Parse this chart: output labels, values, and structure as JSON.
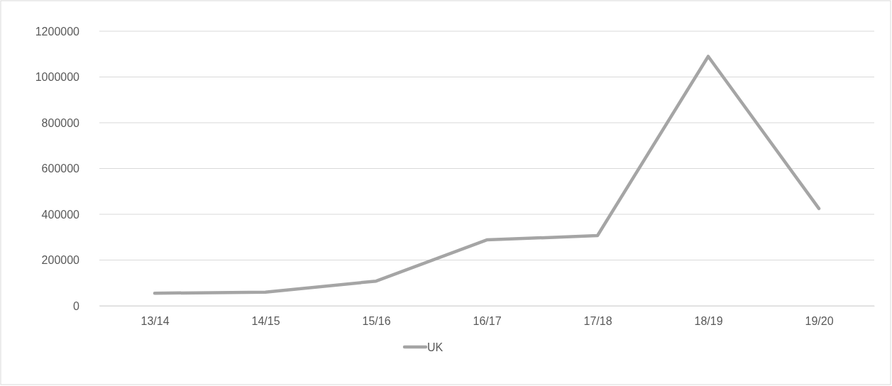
{
  "chart_data": {
    "type": "line",
    "categories": [
      "13/14",
      "14/15",
      "15/16",
      "16/17",
      "17/18",
      "18/19",
      "19/20"
    ],
    "series": [
      {
        "name": "UK",
        "color": "#a5a5a5",
        "values": [
          55000,
          60000,
          108000,
          288000,
          307000,
          1090000,
          425000
        ]
      }
    ],
    "ylim": [
      0,
      1200000
    ],
    "yticks": [
      0,
      200000,
      400000,
      600000,
      800000,
      1000000,
      1200000
    ],
    "grid": "y",
    "legend": "bottom",
    "marker": "none",
    "line_style": "solid"
  }
}
